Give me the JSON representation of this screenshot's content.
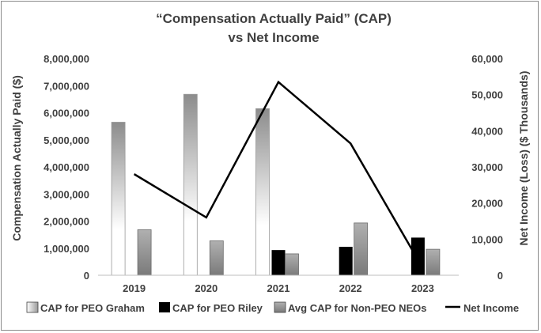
{
  "chart_data": {
    "type": "bar",
    "title": "“Compensation Actually Paid” (CAP)",
    "subtitle": "vs Net Income",
    "categories": [
      "2019",
      "2020",
      "2021",
      "2022",
      "2023"
    ],
    "ylabel": "Compensation Actually Paid ($)",
    "ylim": [
      0,
      8000000
    ],
    "y_ticks": [
      "0",
      "1,000,000",
      "2,000,000",
      "3,000,000",
      "4,000,000",
      "5,000,000",
      "6,000,000",
      "7,000,000",
      "8,000,000"
    ],
    "y2label": "Net Income (Loss) ($ Thousands)",
    "y2lim": [
      0,
      60000
    ],
    "y2_ticks": [
      "0",
      "10,000",
      "20,000",
      "30,000",
      "40,000",
      "50,000",
      "60,000"
    ],
    "grid": "none",
    "legend_position": "bottom",
    "series": [
      {
        "name": "CAP for PEO Graham",
        "type": "bar",
        "axis": "left",
        "values": [
          5650000,
          6680000,
          6150000,
          null,
          null
        ]
      },
      {
        "name": "CAP for PEO Riley",
        "type": "bar",
        "axis": "left",
        "values": [
          null,
          null,
          930000,
          1050000,
          1390000
        ]
      },
      {
        "name": "Avg CAP for Non-PEO NEOs",
        "type": "bar",
        "axis": "left",
        "values": [
          1680000,
          1270000,
          790000,
          1930000,
          960000
        ]
      },
      {
        "name": "Net Income",
        "type": "line",
        "axis": "right",
        "values": [
          28000,
          16000,
          53500,
          36500,
          2000
        ]
      }
    ],
    "colors": {
      "graham_fill_top": "#8c8c8c",
      "graham_fill_bottom": "#ffffff",
      "riley_fill": "#000000",
      "nonpeo_fill_top": "#a8a8a8",
      "nonpeo_fill_bottom": "#7a7a7a",
      "line": "#000000",
      "text": "#404040"
    }
  }
}
